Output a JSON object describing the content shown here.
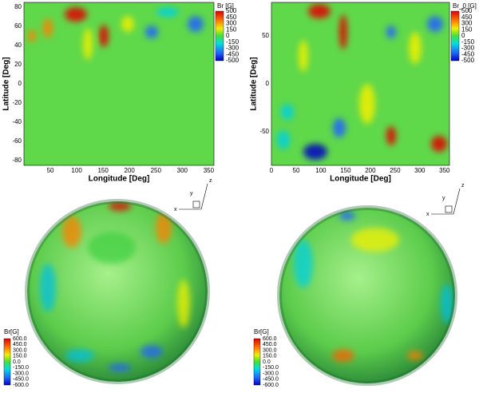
{
  "maps": [
    {
      "colorbar_title": "Br [G]",
      "colorbar_labels": [
        "500",
        "450",
        "300",
        "150",
        "0",
        "-150",
        "-300",
        "-450",
        "-500"
      ],
      "y_label": "Latitude [Deg]",
      "x_label": "Longitude [Deg]",
      "y_ticks": [
        "80",
        "60",
        "40",
        "20",
        "0",
        "-20",
        "-40",
        "-60",
        "-80"
      ],
      "x_ticks": [
        "50",
        "100",
        "150",
        "200",
        "250",
        "300",
        "350"
      ]
    },
    {
      "colorbar_title": "Br_0 [G]",
      "colorbar_labels": [
        "500",
        "450",
        "300",
        "150",
        "0",
        "-150",
        "-300",
        "-450",
        "-500"
      ],
      "y_label": "Latitude [Deg]",
      "x_label": "Longitude [Deg]",
      "y_ticks": [
        "50",
        "0",
        "-50"
      ],
      "x_ticks": [
        "0",
        "50",
        "100",
        "150",
        "200",
        "250",
        "300",
        "350"
      ]
    }
  ],
  "spheres": [
    {
      "colorbar_title": "Br[G]",
      "colorbar_labels": [
        "600.0",
        "450.0",
        "300.0",
        "150.0",
        "0.0",
        "-150.0",
        "-300.0",
        "-450.0",
        "-600.0"
      ],
      "axes": [
        "z",
        "x",
        "y"
      ]
    },
    {
      "colorbar_title": "Br[G]",
      "colorbar_labels": [
        "600.0",
        "450.0",
        "300.0",
        "150.0",
        "0.0",
        "-150.0",
        "-300.0",
        "-450.0",
        "-600.0"
      ],
      "axes": [
        "z",
        "x",
        "y"
      ]
    }
  ]
}
